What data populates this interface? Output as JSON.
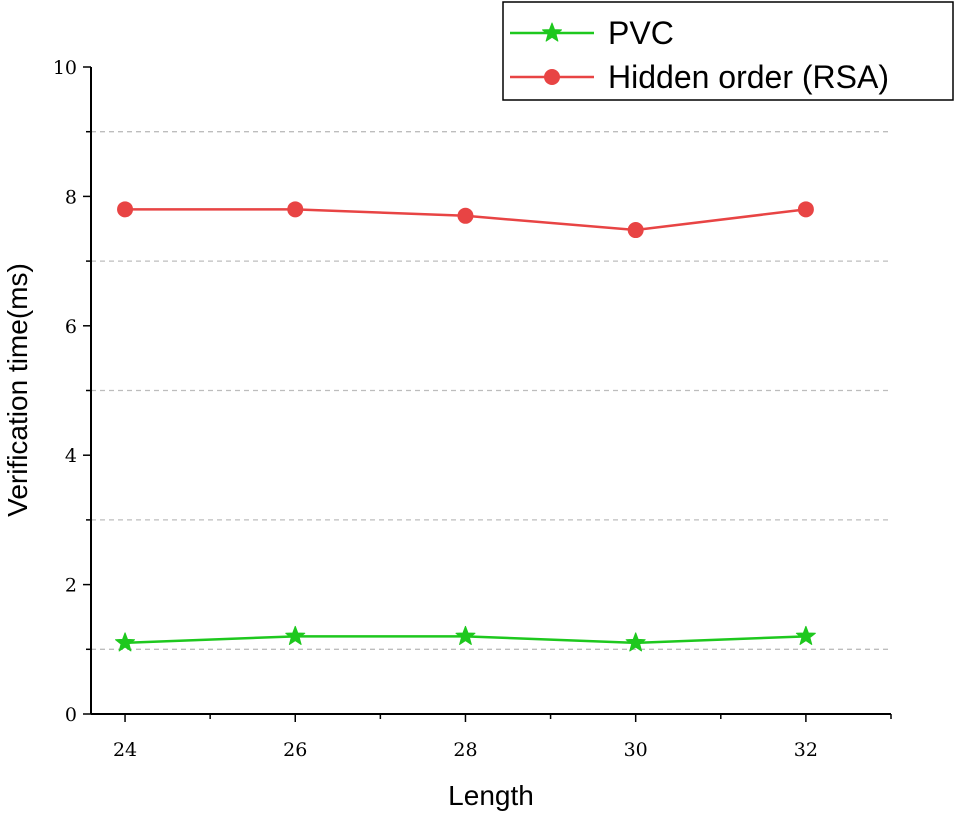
{
  "chart_data": {
    "type": "line",
    "xlabel": "Length",
    "ylabel": "Verification time(ms)",
    "x": [
      24,
      26,
      28,
      30,
      32
    ],
    "xlim": [
      23.6,
      33
    ],
    "ylim": [
      0,
      10
    ],
    "xticks": [
      "24",
      "26",
      "28",
      "30",
      "32"
    ],
    "yticks": [
      "0",
      "2",
      "4",
      "6",
      "8",
      "10"
    ],
    "grid": "horizontal dashed at odd values",
    "legend_position": "top-right",
    "series": [
      {
        "name": "PVC",
        "values": [
          1.1,
          1.2,
          1.2,
          1.1,
          1.2
        ],
        "color": "#1ec81e",
        "marker": "star"
      },
      {
        "name": "Hidden order (RSA)",
        "values": [
          7.8,
          7.8,
          7.7,
          7.48,
          7.8
        ],
        "color": "#e84444",
        "marker": "circle"
      }
    ]
  }
}
